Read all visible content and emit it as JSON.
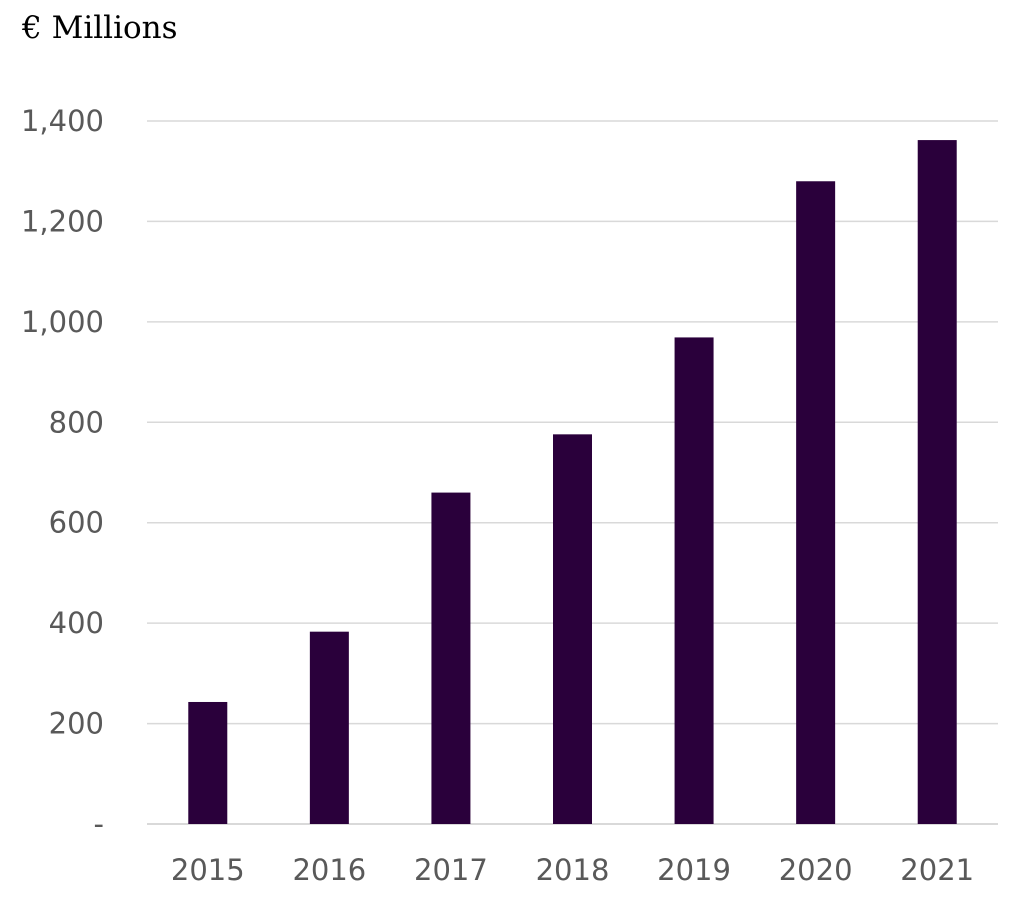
{
  "chart_data": {
    "type": "bar",
    "title": "",
    "unit_label": "€ Millions",
    "xlabel": "",
    "ylabel": "",
    "categories": [
      "2015",
      "2016",
      "2017",
      "2018",
      "2019",
      "2020",
      "2021"
    ],
    "values": [
      243,
      383,
      660,
      776,
      969,
      1280,
      1362
    ],
    "ylim": [
      0,
      1400
    ],
    "y_ticks": [
      0,
      200,
      400,
      600,
      800,
      1000,
      1200,
      1400
    ],
    "y_tick_labels": [
      "-",
      "200",
      "400",
      "600",
      "800",
      "1,000",
      "1,200",
      "1,400"
    ],
    "grid": true,
    "legend": "none",
    "colors": {
      "bar": "#2a003b",
      "grid": "#d9d9d9",
      "axis_text": "#595959"
    }
  }
}
